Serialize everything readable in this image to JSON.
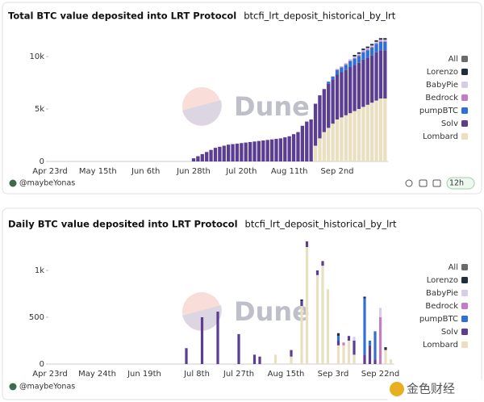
{
  "watermark": "金色财经",
  "chart_data": [
    {
      "type": "bar",
      "stacked": true,
      "title": "Total BTC value deposited into LRT Protocol",
      "subtitle": "btcfi_lrt_deposit_historical_by_lrt",
      "watermark": "Dune",
      "author": "@maybeYonas",
      "refresh": "12h",
      "legend": "right",
      "legend_all_label": "All",
      "legend_all_color": "#6b6b6b",
      "categories": [
        "Apr 23rd",
        null,
        null,
        null,
        null,
        null,
        null,
        null,
        null,
        null,
        null,
        "May 15th",
        null,
        null,
        null,
        null,
        null,
        null,
        null,
        null,
        null,
        null,
        "Jun 6th",
        null,
        null,
        null,
        null,
        null,
        null,
        null,
        null,
        null,
        null,
        "Jun 28th",
        null,
        null,
        null,
        null,
        null,
        null,
        null,
        null,
        null,
        null,
        "Jul 20th",
        null,
        null,
        null,
        null,
        null,
        null,
        null,
        null,
        null,
        null,
        "Aug 11th",
        null,
        null,
        null,
        null,
        null,
        null,
        null,
        null,
        null,
        null,
        "Sep 2nd",
        null,
        null,
        null,
        null,
        null,
        null,
        null,
        null,
        null,
        null,
        null
      ],
      "ylim": [
        0,
        12000
      ],
      "yticks": [
        0,
        {
          "value": 5000,
          "label": "5k"
        },
        {
          "value": 10000,
          "label": "10k"
        }
      ],
      "series": [
        {
          "name": "Lombard",
          "color": "#eadfc0",
          "values": [
            0,
            0,
            0,
            0,
            0,
            0,
            0,
            0,
            0,
            0,
            0,
            0,
            0,
            0,
            0,
            0,
            0,
            0,
            0,
            0,
            0,
            0,
            0,
            0,
            0,
            0,
            0,
            0,
            0,
            0,
            0,
            0,
            0,
            0,
            0,
            0,
            0,
            0,
            0,
            0,
            0,
            0,
            0,
            0,
            0,
            0,
            0,
            0,
            0,
            0,
            0,
            0,
            0,
            0,
            0,
            0,
            0,
            0,
            0,
            0,
            0,
            1500,
            2200,
            2800,
            3200,
            3600,
            4000,
            4200,
            4400,
            4600,
            4800,
            5000,
            5200,
            5400,
            5600,
            5800,
            6000,
            6000
          ]
        },
        {
          "name": "Solv",
          "color": "#5b3d91",
          "values": [
            0,
            0,
            0,
            0,
            0,
            0,
            0,
            0,
            0,
            0,
            0,
            0,
            0,
            0,
            0,
            0,
            0,
            0,
            0,
            0,
            0,
            0,
            0,
            0,
            0,
            0,
            0,
            0,
            0,
            0,
            0,
            0,
            0,
            300,
            500,
            700,
            900,
            1100,
            1300,
            1400,
            1500,
            1600,
            1650,
            1700,
            1750,
            1800,
            1850,
            1900,
            1950,
            2000,
            2050,
            2100,
            2150,
            2200,
            2300,
            2400,
            2600,
            2800,
            3400,
            3800,
            4000,
            4000,
            4100,
            4100,
            4200,
            4200,
            4300,
            4300,
            4300,
            4400,
            4400,
            4400,
            4500,
            4500,
            4500,
            4600,
            4600,
            4600
          ]
        },
        {
          "name": "pumpBTC",
          "color": "#2f6fd6",
          "values": [
            0,
            0,
            0,
            0,
            0,
            0,
            0,
            0,
            0,
            0,
            0,
            0,
            0,
            0,
            0,
            0,
            0,
            0,
            0,
            0,
            0,
            0,
            0,
            0,
            0,
            0,
            0,
            0,
            0,
            0,
            0,
            0,
            0,
            0,
            0,
            0,
            0,
            0,
            0,
            0,
            0,
            0,
            0,
            0,
            0,
            0,
            0,
            0,
            0,
            0,
            0,
            0,
            0,
            0,
            0,
            0,
            0,
            0,
            0,
            0,
            0,
            0,
            0,
            0,
            200,
            300,
            400,
            450,
            500,
            550,
            600,
            650,
            700,
            700,
            750,
            800,
            800,
            800
          ]
        },
        {
          "name": "Bedrock",
          "color": "#c67cc4",
          "values": [
            0,
            0,
            0,
            0,
            0,
            0,
            0,
            0,
            0,
            0,
            0,
            0,
            0,
            0,
            0,
            0,
            0,
            0,
            0,
            0,
            0,
            0,
            0,
            0,
            0,
            0,
            0,
            0,
            0,
            0,
            0,
            0,
            0,
            0,
            0,
            0,
            0,
            0,
            0,
            0,
            0,
            0,
            0,
            0,
            0,
            0,
            0,
            0,
            0,
            0,
            0,
            0,
            0,
            0,
            0,
            0,
            0,
            0,
            0,
            0,
            0,
            0,
            0,
            0,
            0,
            0,
            100,
            100,
            100,
            100,
            100,
            100,
            100,
            100,
            100,
            100,
            100,
            100
          ]
        },
        {
          "name": "BabyPie",
          "color": "#d8cde8",
          "values": [
            0,
            0,
            0,
            0,
            0,
            0,
            0,
            0,
            0,
            0,
            0,
            0,
            0,
            0,
            0,
            0,
            0,
            0,
            0,
            0,
            0,
            0,
            0,
            0,
            0,
            0,
            0,
            0,
            0,
            0,
            0,
            0,
            0,
            0,
            0,
            0,
            0,
            0,
            0,
            0,
            0,
            0,
            0,
            0,
            0,
            0,
            0,
            0,
            0,
            0,
            0,
            0,
            0,
            0,
            0,
            0,
            0,
            0,
            0,
            0,
            0,
            0,
            0,
            0,
            0,
            0,
            0,
            0,
            100,
            100,
            100,
            100,
            100,
            100,
            100,
            100,
            100,
            100
          ]
        },
        {
          "name": "Lorenzo",
          "color": "#1f2d3d",
          "values": [
            0,
            0,
            0,
            0,
            0,
            0,
            0,
            0,
            0,
            0,
            0,
            0,
            0,
            0,
            0,
            0,
            0,
            0,
            0,
            0,
            0,
            0,
            0,
            0,
            0,
            0,
            0,
            0,
            0,
            0,
            0,
            0,
            0,
            0,
            0,
            0,
            0,
            0,
            0,
            0,
            0,
            0,
            0,
            0,
            0,
            0,
            0,
            0,
            0,
            0,
            0,
            0,
            0,
            0,
            0,
            0,
            0,
            0,
            0,
            0,
            0,
            0,
            0,
            0,
            0,
            0,
            0,
            0,
            0,
            0,
            150,
            150,
            150,
            150,
            150,
            150,
            150,
            150
          ]
        }
      ]
    },
    {
      "type": "bar",
      "stacked": true,
      "title": "Daily BTC value deposited into LRT Protocol",
      "subtitle": "btcfi_lrt_deposit_historical_by_lrt",
      "watermark": "Dune",
      "author": "@maybeYonas",
      "legend": "right",
      "legend_all_label": "All",
      "legend_all_color": "#6b6b6b",
      "categories": [
        "Apr 23rd",
        null,
        null,
        null,
        null,
        null,
        null,
        null,
        null,
        "May 24th",
        null,
        null,
        null,
        null,
        null,
        null,
        null,
        null,
        "Jun 19th",
        null,
        null,
        null,
        null,
        null,
        null,
        null,
        null,
        null,
        "Jul 8th",
        null,
        null,
        null,
        null,
        null,
        null,
        null,
        "Jul 27th",
        null,
        null,
        null,
        null,
        null,
        null,
        null,
        null,
        "Aug 15th",
        null,
        null,
        null,
        null,
        null,
        null,
        null,
        null,
        "Sep 3rd",
        null,
        null,
        null,
        null,
        null,
        null,
        null,
        null,
        "Sep 22nd",
        null,
        null
      ],
      "ylim": [
        0,
        1400
      ],
      "yticks": [
        0,
        500,
        {
          "value": 1000,
          "label": "1k"
        }
      ],
      "series": [
        {
          "name": "Lombard",
          "color": "#eadfc0",
          "values": [
            0,
            0,
            0,
            0,
            0,
            0,
            0,
            0,
            0,
            0,
            0,
            0,
            0,
            0,
            0,
            0,
            0,
            0,
            0,
            0,
            0,
            0,
            0,
            0,
            0,
            0,
            0,
            0,
            0,
            0,
            0,
            0,
            0,
            0,
            0,
            0,
            0,
            0,
            0,
            0,
            0,
            0,
            0,
            100,
            0,
            0,
            80,
            0,
            620,
            1250,
            0,
            950,
            1050,
            800,
            0,
            200,
            200,
            250,
            100,
            0,
            0,
            0,
            0,
            0,
            150,
            50
          ]
        },
        {
          "name": "Solv",
          "color": "#5b3d91",
          "values": [
            0,
            0,
            0,
            0,
            0,
            0,
            0,
            0,
            0,
            0,
            0,
            0,
            0,
            0,
            0,
            0,
            0,
            0,
            0,
            0,
            0,
            0,
            0,
            0,
            0,
            0,
            170,
            0,
            0,
            500,
            0,
            0,
            560,
            0,
            0,
            0,
            320,
            0,
            0,
            100,
            80,
            0,
            0,
            0,
            0,
            0,
            70,
            0,
            50,
            60,
            0,
            50,
            50,
            0,
            0,
            50,
            0,
            50,
            150,
            0,
            100,
            200,
            50,
            0,
            0,
            0
          ]
        },
        {
          "name": "pumpBTC",
          "color": "#2f6fd6",
          "values": [
            0,
            0,
            0,
            0,
            0,
            0,
            0,
            0,
            0,
            0,
            0,
            0,
            0,
            0,
            0,
            0,
            0,
            0,
            0,
            0,
            0,
            0,
            0,
            0,
            0,
            0,
            0,
            0,
            0,
            0,
            0,
            0,
            0,
            0,
            0,
            0,
            0,
            0,
            0,
            0,
            0,
            0,
            0,
            0,
            0,
            0,
            0,
            0,
            0,
            0,
            0,
            0,
            0,
            0,
            0,
            50,
            0,
            0,
            0,
            0,
            600,
            50,
            300,
            0,
            0,
            0
          ]
        },
        {
          "name": "Bedrock",
          "color": "#c67cc4",
          "values": [
            0,
            0,
            0,
            0,
            0,
            0,
            0,
            0,
            0,
            0,
            0,
            0,
            0,
            0,
            0,
            0,
            0,
            0,
            0,
            0,
            0,
            0,
            0,
            0,
            0,
            0,
            0,
            0,
            0,
            0,
            0,
            0,
            0,
            0,
            0,
            0,
            0,
            0,
            0,
            0,
            0,
            0,
            0,
            0,
            0,
            0,
            0,
            0,
            0,
            0,
            0,
            0,
            0,
            0,
            0,
            0,
            30,
            0,
            0,
            0,
            0,
            0,
            0,
            500,
            0,
            0
          ]
        },
        {
          "name": "BabyPie",
          "color": "#d8cde8",
          "values": [
            0,
            0,
            0,
            0,
            0,
            0,
            0,
            0,
            0,
            0,
            0,
            0,
            0,
            0,
            0,
            0,
            0,
            0,
            0,
            0,
            0,
            0,
            0,
            0,
            0,
            0,
            0,
            0,
            0,
            0,
            0,
            0,
            0,
            0,
            0,
            0,
            0,
            0,
            0,
            0,
            0,
            0,
            0,
            0,
            0,
            0,
            0,
            0,
            0,
            0,
            0,
            0,
            0,
            0,
            0,
            0,
            0,
            0,
            40,
            0,
            0,
            0,
            0,
            100,
            0,
            0
          ]
        },
        {
          "name": "Lorenzo",
          "color": "#1f2d3d",
          "values": [
            0,
            0,
            0,
            0,
            0,
            0,
            0,
            0,
            0,
            0,
            0,
            0,
            0,
            0,
            0,
            0,
            0,
            0,
            0,
            0,
            0,
            0,
            0,
            0,
            0,
            0,
            0,
            0,
            0,
            0,
            0,
            0,
            0,
            0,
            0,
            0,
            0,
            0,
            0,
            0,
            0,
            0,
            0,
            0,
            0,
            0,
            0,
            0,
            20,
            0,
            0,
            0,
            0,
            0,
            0,
            30,
            0,
            0,
            0,
            0,
            20,
            0,
            0,
            0,
            30,
            0
          ]
        }
      ]
    }
  ]
}
